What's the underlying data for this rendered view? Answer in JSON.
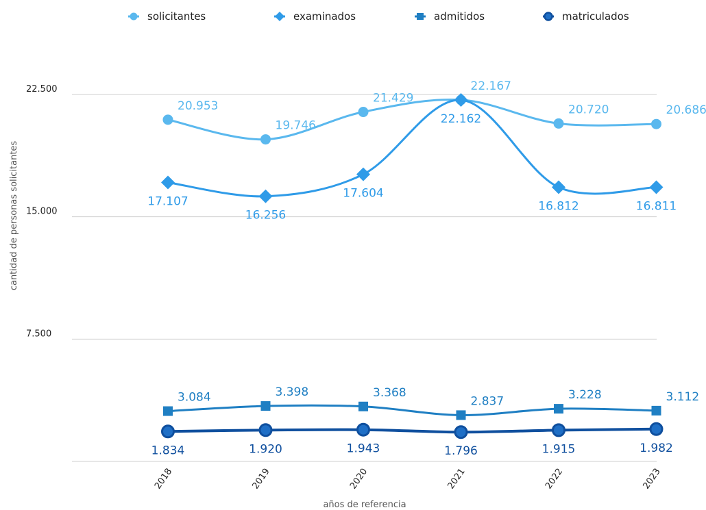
{
  "chart_data": {
    "type": "line",
    "title": "",
    "xlabel": "años de referencia",
    "ylabel": "cantidad de personas  solicitantes",
    "categories": [
      "2018",
      "2019",
      "2020",
      "2021",
      "2022",
      "2023"
    ],
    "ylim": [
      0,
      22500
    ],
    "yticks": [
      7500,
      15000,
      22500
    ],
    "ytick_labels": [
      "7.500",
      "15.000",
      "22.500"
    ],
    "grid": true,
    "legend_position": "top",
    "series": [
      {
        "name": "solicitantes",
        "values": [
          20953,
          19746,
          21429,
          22167,
          20720,
          20686
        ],
        "labels": [
          "20.953",
          "19.746",
          "21.429",
          "22.167",
          "20.720",
          "20.686"
        ],
        "color": "#5ab8ee",
        "marker": "circle",
        "label_position": "above"
      },
      {
        "name": "examinados",
        "values": [
          17107,
          16256,
          17604,
          22162,
          16812,
          16811
        ],
        "labels": [
          "17.107",
          "16.256",
          "17.604",
          "22.162",
          "16.812",
          "16.811"
        ],
        "color": "#2f9be8",
        "marker": "diamond",
        "label_position": "below"
      },
      {
        "name": "admitidos",
        "values": [
          3084,
          3398,
          3368,
          2837,
          3228,
          3112
        ],
        "labels": [
          "3.084",
          "3.398",
          "3.368",
          "2.837",
          "3.228",
          "3.112"
        ],
        "color": "#1f7fc3",
        "marker": "square",
        "label_position": "above"
      },
      {
        "name": "matriculados",
        "values": [
          1834,
          1920,
          1943,
          1796,
          1915,
          1982
        ],
        "labels": [
          "1.834",
          "1.920",
          "1.943",
          "1.796",
          "1.915",
          "1.982"
        ],
        "color": "#0f4f9e",
        "marker": "circle-outline",
        "label_position": "below"
      }
    ]
  }
}
